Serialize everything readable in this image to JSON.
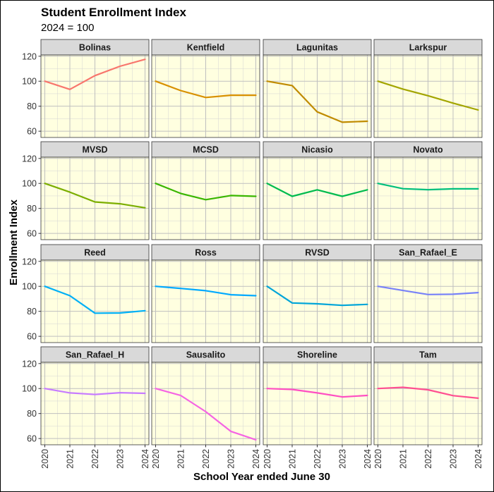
{
  "chart_data": {
    "type": "line",
    "title": "Student Enrollment Index",
    "subtitle": "2024 = 100",
    "xlabel": "School Year ended June 30",
    "ylabel": "Enrollment Index",
    "x": [
      "2020",
      "2021",
      "2022",
      "2023",
      "2024"
    ],
    "ylim": [
      55,
      121
    ],
    "yticks": [
      60,
      80,
      100,
      120
    ],
    "grid": true,
    "panel_background": "#ffffe0",
    "strip_background": "#d9d9d9",
    "series": [
      {
        "name": "Bolinas",
        "color": "#f8766d",
        "values": [
          100,
          93.5,
          104.5,
          112,
          117.5
        ]
      },
      {
        "name": "Kentfield",
        "color": "#d89000",
        "values": [
          100,
          92.5,
          87,
          88.8,
          88.8
        ]
      },
      {
        "name": "Lagunitas",
        "color": "#c08b00",
        "values": [
          100,
          96.5,
          75.5,
          67.2,
          68
        ]
      },
      {
        "name": "Larkspur",
        "color": "#a3a500",
        "values": [
          100,
          93.7,
          88.4,
          82.5,
          77
        ]
      },
      {
        "name": "MVSD",
        "color": "#7cae00",
        "values": [
          100,
          93,
          85.2,
          83.7,
          80.5
        ]
      },
      {
        "name": "MCSD",
        "color": "#39b600",
        "values": [
          100,
          92,
          87,
          90.3,
          89.7
        ]
      },
      {
        "name": "Nicasio",
        "color": "#00bb4e",
        "values": [
          100,
          89.7,
          94.9,
          89.7,
          94.9
        ]
      },
      {
        "name": "Novato",
        "color": "#00bf7d",
        "values": [
          100,
          95.8,
          95,
          95.7,
          95.7
        ]
      },
      {
        "name": "Reed",
        "color": "#00b0f6",
        "values": [
          100,
          92.5,
          78.5,
          78.7,
          80.5
        ]
      },
      {
        "name": "Ross",
        "color": "#00a9ff",
        "values": [
          100,
          98.3,
          96.5,
          93.3,
          92.5
        ]
      },
      {
        "name": "RVSD",
        "color": "#00a5d8",
        "values": [
          100,
          86.7,
          86,
          84.8,
          85.6
        ]
      },
      {
        "name": "San_Rafael_E",
        "color": "#7882f8",
        "values": [
          100,
          96.7,
          93.5,
          93.7,
          95
        ]
      },
      {
        "name": "San_Rafael_H",
        "color": "#c77cff",
        "values": [
          100,
          96.5,
          95.3,
          96.7,
          96.2
        ]
      },
      {
        "name": "Sausalito",
        "color": "#f564e3",
        "values": [
          100,
          94.5,
          81.5,
          65.8,
          59
        ]
      },
      {
        "name": "Shoreline",
        "color": "#ff4fc2",
        "values": [
          100,
          99.3,
          96.5,
          93.3,
          94.5
        ]
      },
      {
        "name": "Tam",
        "color": "#ff4f91",
        "values": [
          100,
          101,
          99,
          94.3,
          92.3
        ]
      }
    ]
  }
}
